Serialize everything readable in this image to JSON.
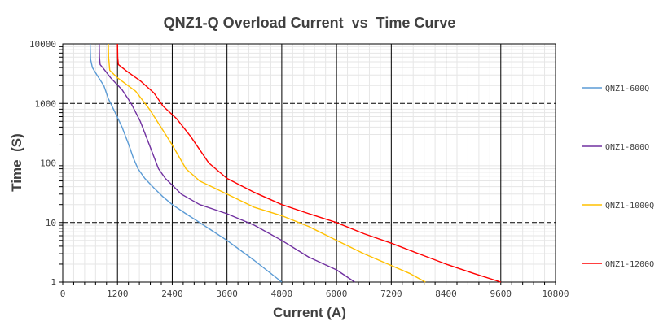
{
  "chart_data": {
    "type": "line",
    "title": "QNZ1-Q Overload Current  vs  Time Curve",
    "xlabel": "Current (A)",
    "ylabel": "Time  (S)",
    "xlim": [
      0,
      10800
    ],
    "ylim": [
      1,
      10000
    ],
    "y_scale": "log",
    "grid": true,
    "legend_position": "right",
    "x_ticks": [
      "0",
      "1200",
      "2400",
      "3600",
      "4800",
      "6000",
      "7200",
      "8400",
      "9600",
      "10800"
    ],
    "y_ticks": [
      "1",
      "10",
      "100",
      "1000",
      "10000"
    ],
    "series": [
      {
        "name": "QNZ1-600Q",
        "color": "#5b9bd5",
        "points": [
          [
            600,
            10000
          ],
          [
            610,
            5500
          ],
          [
            650,
            4000
          ],
          [
            750,
            3000
          ],
          [
            900,
            2000
          ],
          [
            1000,
            1200
          ],
          [
            1150,
            700
          ],
          [
            1300,
            400
          ],
          [
            1450,
            200
          ],
          [
            1550,
            120
          ],
          [
            1650,
            80
          ],
          [
            1800,
            55
          ],
          [
            2000,
            38
          ],
          [
            2200,
            27
          ],
          [
            2400,
            20
          ],
          [
            2700,
            14
          ],
          [
            3000,
            10
          ],
          [
            3600,
            5
          ],
          [
            4200,
            2.3
          ],
          [
            4800,
            1
          ]
        ]
      },
      {
        "name": "QNZ1-800Q",
        "color": "#7030a0",
        "points": [
          [
            800,
            10000
          ],
          [
            805,
            6000
          ],
          [
            820,
            4500
          ],
          [
            900,
            3800
          ],
          [
            1050,
            2700
          ],
          [
            1300,
            1700
          ],
          [
            1500,
            1000
          ],
          [
            1700,
            500
          ],
          [
            1900,
            200
          ],
          [
            2100,
            80
          ],
          [
            2250,
            55
          ],
          [
            2600,
            30
          ],
          [
            3000,
            20
          ],
          [
            3600,
            14
          ],
          [
            4200,
            9
          ],
          [
            4800,
            5
          ],
          [
            5400,
            2.6
          ],
          [
            6000,
            1.6
          ],
          [
            6400,
            1
          ]
        ]
      },
      {
        "name": "QNZ1-1000Q",
        "color": "#ffc000",
        "points": [
          [
            1000,
            10000
          ],
          [
            1005,
            6000
          ],
          [
            1030,
            3600
          ],
          [
            1200,
            2700
          ],
          [
            1600,
            1600
          ],
          [
            1900,
            800
          ],
          [
            2200,
            350
          ],
          [
            2400,
            200
          ],
          [
            2700,
            80
          ],
          [
            3000,
            50
          ],
          [
            3600,
            30
          ],
          [
            4200,
            18
          ],
          [
            4800,
            13
          ],
          [
            5400,
            8.5
          ],
          [
            6000,
            5
          ],
          [
            6600,
            3
          ],
          [
            7200,
            1.9
          ],
          [
            7600,
            1.4
          ],
          [
            7950,
            1
          ]
        ]
      },
      {
        "name": "QNZ1-1200Q",
        "color": "#ff0000",
        "points": [
          [
            1200,
            10000
          ],
          [
            1205,
            6000
          ],
          [
            1220,
            4500
          ],
          [
            1400,
            3500
          ],
          [
            1700,
            2400
          ],
          [
            2000,
            1500
          ],
          [
            2200,
            900
          ],
          [
            2500,
            550
          ],
          [
            2800,
            280
          ],
          [
            3200,
            100
          ],
          [
            3600,
            55
          ],
          [
            4200,
            32
          ],
          [
            4800,
            20
          ],
          [
            5400,
            14
          ],
          [
            6000,
            10
          ],
          [
            6600,
            6.5
          ],
          [
            7200,
            4.5
          ],
          [
            7800,
            3
          ],
          [
            8400,
            2
          ],
          [
            9000,
            1.4
          ],
          [
            9600,
            1
          ]
        ]
      }
    ]
  }
}
